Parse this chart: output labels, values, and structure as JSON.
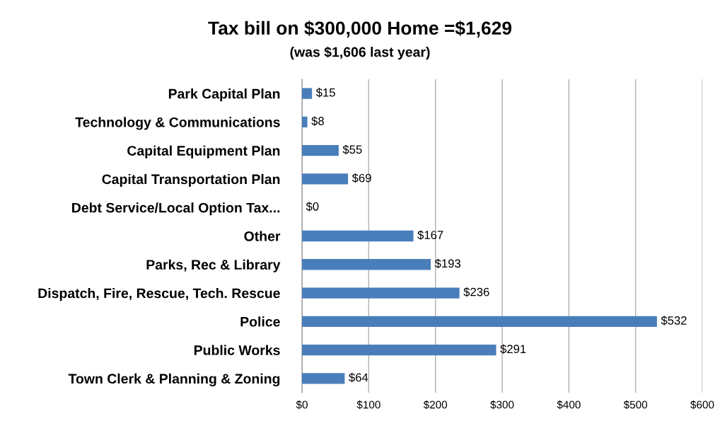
{
  "chart_data": {
    "type": "bar",
    "orientation": "horizontal",
    "title": "Tax bill on $300,000 Home =$1,629",
    "subtitle": "(was $1,606 last year)",
    "categories": [
      "Park Capital Plan",
      "Technology & Communications",
      "Capital Equipment Plan",
      "Capital Transportation Plan",
      "Debt Service/Local Option Tax...",
      "Other",
      "Parks, Rec & Library",
      "Dispatch, Fire, Rescue, Tech. Rescue",
      "Police",
      "Public Works",
      "Town Clerk & Planning & Zoning"
    ],
    "values": [
      15,
      8,
      55,
      69,
      0,
      167,
      193,
      236,
      532,
      291,
      64
    ],
    "value_labels": [
      "$15",
      "$8",
      "$55",
      "$69",
      "$0",
      "$167",
      "$193",
      "$236",
      "$532",
      "$291",
      "$64"
    ],
    "color": "#4a7ebb",
    "xlim": [
      0,
      600
    ],
    "xticks": [
      {
        "value": 0,
        "label": "$0"
      },
      {
        "value": 100,
        "label": "$100"
      },
      {
        "value": 200,
        "label": "$200"
      },
      {
        "value": 300,
        "label": "$300"
      },
      {
        "value": 400,
        "label": "$400"
      },
      {
        "value": 500,
        "label": "$500"
      },
      {
        "value": 600,
        "label": "$600"
      }
    ],
    "grid": "x",
    "legend": false
  }
}
